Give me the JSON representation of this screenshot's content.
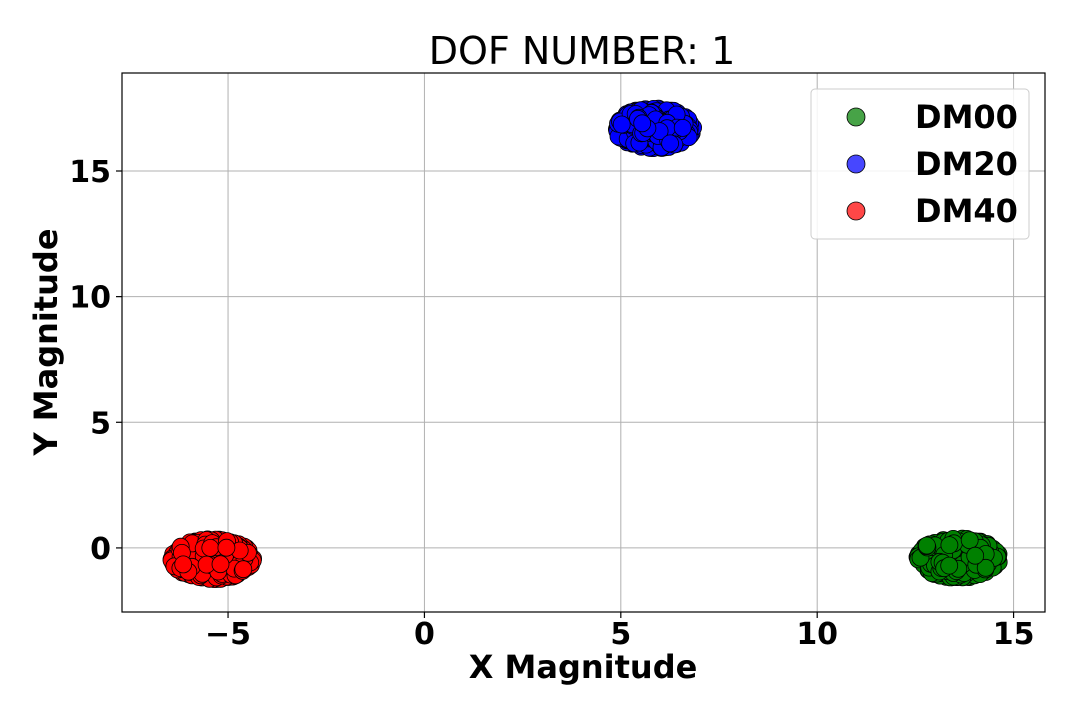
{
  "chart_data": {
    "type": "scatter",
    "title": "DOF NUMBER: 1",
    "xlabel": "X Magnitude",
    "ylabel": "Y Magnitude",
    "xlim": [
      -7.7,
      15.8
    ],
    "ylim": [
      -2.55,
      18.9
    ],
    "xticks": [
      -5,
      0,
      5,
      10,
      15
    ],
    "yticks": [
      0,
      5,
      10,
      15
    ],
    "xtick_labels": [
      "−5",
      "0",
      "5",
      "10",
      "15"
    ],
    "ytick_labels": [
      "0",
      "5",
      "10",
      "15"
    ],
    "grid": true,
    "legend_position": "top-right",
    "series": [
      {
        "name": "DM00",
        "color": "#008000",
        "center": [
          13.6,
          -0.4
        ],
        "spread": [
          1.05,
          0.8
        ],
        "count": 420
      },
      {
        "name": "DM20",
        "color": "#0000ff",
        "center": [
          5.85,
          16.7
        ],
        "spread": [
          1.0,
          0.8
        ],
        "count": 420
      },
      {
        "name": "DM40",
        "color": "#ff0000",
        "center": [
          -5.4,
          -0.45
        ],
        "spread": [
          1.05,
          0.8
        ],
        "count": 420
      }
    ]
  }
}
